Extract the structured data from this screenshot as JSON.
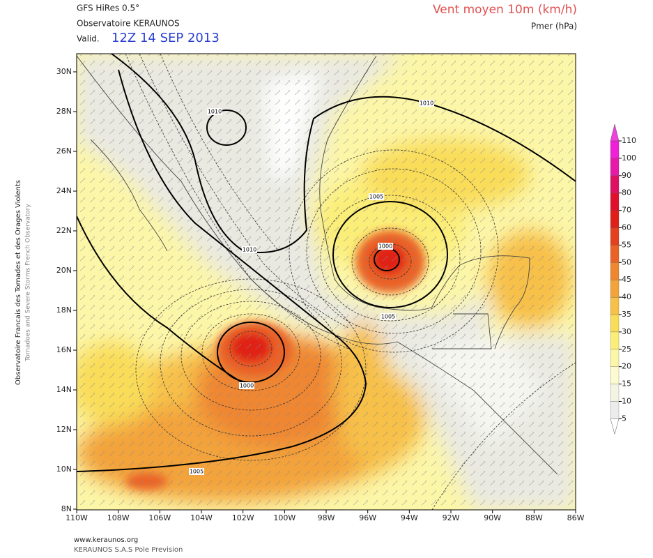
{
  "header": {
    "model": "GFS HiRes 0.5°",
    "source": "Observatoire KERAUNOS",
    "valid_label": "Valid.",
    "valid_time": "12Z 14 SEP 2013",
    "title": "Vent moyen 10m (km/h)",
    "subtitle": "Pmer (hPa)"
  },
  "side_text": {
    "line1": "Observatoire Francais des Tornades et des Orages Violents",
    "line2": "Tornadoes and Severe Storms French Observatory"
  },
  "map": {
    "lat_labels": [
      "30N",
      "28N",
      "26N",
      "24N",
      "22N",
      "20N",
      "18N",
      "16N",
      "14N",
      "12N",
      "10N",
      "8N"
    ],
    "lon_labels": [
      "110W",
      "108W",
      "106W",
      "104W",
      "102W",
      "100W",
      "98W",
      "96W",
      "94W",
      "92W",
      "90W",
      "88W",
      "86W"
    ],
    "isobar_labels": [
      "1010",
      "1010",
      "1010",
      "1005",
      "1000",
      "1005",
      "1000",
      "1005"
    ]
  },
  "colorbar": {
    "labels": [
      "5",
      "10",
      "15",
      "20",
      "25",
      "30",
      "35",
      "40",
      "45",
      "50",
      "55",
      "60",
      "70",
      "80",
      "90",
      "100",
      "110"
    ],
    "colors": [
      "#ffffff",
      "#ececec",
      "#f4f4e4",
      "#fbfbcf",
      "#fcf6a8",
      "#fbee78",
      "#f9dc58",
      "#f7c048",
      "#f3a33a",
      "#ef8630",
      "#ea6226",
      "#e4401e",
      "#e02018",
      "#e0102c",
      "#e01060",
      "#e818a8",
      "#f020d8",
      "#f040e0"
    ]
  },
  "footer": {
    "url": "www.keraunos.org",
    "company": "KERAUNOS S.A.S Pole Prevision"
  }
}
